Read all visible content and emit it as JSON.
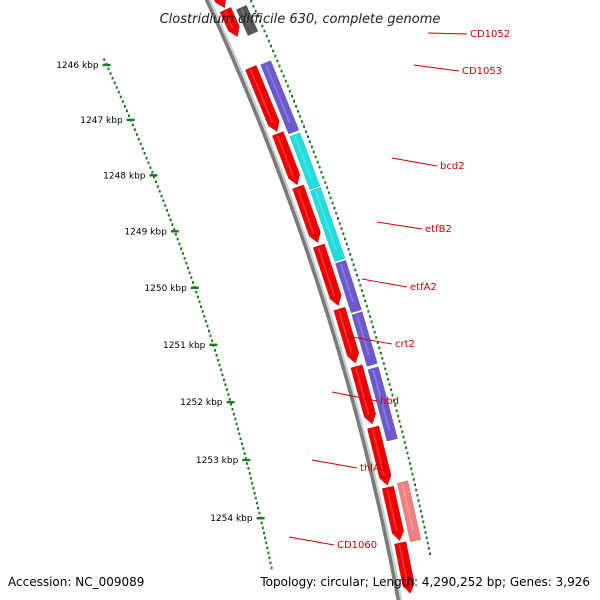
{
  "title": "Clostridium difficile 630, complete genome",
  "footer": {
    "accession": "Accession: NC_009089",
    "topology": "Topology: circular; Length: 4,290,252 bp; Genes: 3,926"
  },
  "colors": {
    "backbone": "#7a7a7a",
    "tick": "#1a7a1a",
    "label": "#cc0000",
    "leader": "#cc0000",
    "cds": "#ee0000",
    "blue": "#6a5acd",
    "cyan": "#22dddd",
    "grey": "#555555",
    "pink": "#f08080"
  },
  "ticks": [
    "1246 kbp",
    "1247 kbp",
    "1248 kbp",
    "1249 kbp",
    "1250 kbp",
    "1251 kbp",
    "1252 kbp",
    "1253 kbp",
    "1254 kbp"
  ],
  "genes": [
    {
      "label": "CD1052",
      "color": "pink"
    },
    {
      "label": "CD1053",
      "color": "grey"
    },
    {
      "label": "bcd2",
      "color": "blue"
    },
    {
      "label": "etfB2",
      "color": "cyan"
    },
    {
      "label": "etfA2",
      "color": "cyan"
    },
    {
      "label": "crt2",
      "color": "blue"
    },
    {
      "label": "hbd",
      "color": "blue"
    },
    {
      "label": "thlA1",
      "color": "blue"
    },
    {
      "label": "CD1060",
      "color": "pink"
    }
  ]
}
